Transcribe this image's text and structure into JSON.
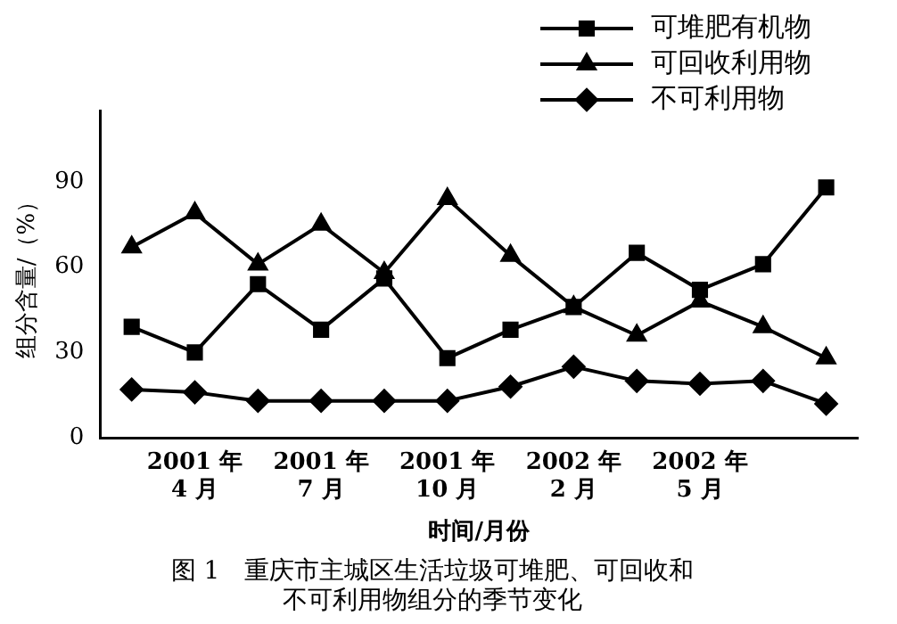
{
  "chart_data": {
    "type": "line",
    "title": "图 1　重庆市主城区生活垃圾可堆肥、可回收和不可利用物组分的季节变化",
    "xlabel": "时间/月份",
    "ylabel": "组分含量/（%）",
    "categories": [
      null,
      "2001 年\n4 月",
      null,
      "2001 年\n7 月",
      null,
      "2001 年\n10 月",
      null,
      "2002 年\n2 月",
      null,
      "2002 年\n5 月",
      null,
      null
    ],
    "series": [
      {
        "name": "可堆肥有机物",
        "color": "#000000",
        "marker": "square",
        "values": [
          39,
          30,
          54,
          38,
          56,
          28,
          38,
          46,
          65,
          52,
          61,
          88
        ]
      },
      {
        "name": "可回收利用物",
        "color": "#000000",
        "marker": "triangle",
        "values": [
          67,
          79,
          61,
          75,
          58,
          84,
          64,
          46,
          36,
          48,
          39,
          28
        ]
      },
      {
        "name": "不可利用物",
        "color": "#000000",
        "marker": "diamond",
        "values": [
          17,
          16,
          13,
          13,
          13,
          13,
          18,
          25,
          20,
          19,
          20,
          12
        ]
      }
    ],
    "ylim": [
      0,
      115
    ],
    "yticks": [
      0,
      30,
      60,
      90
    ],
    "grid": false,
    "legend": "top right",
    "line_style": "solid"
  }
}
